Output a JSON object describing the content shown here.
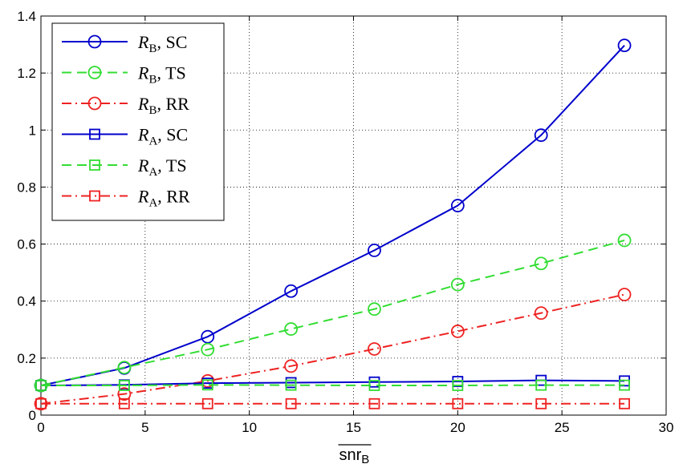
{
  "chart_data": {
    "type": "line",
    "title": "",
    "xlabel": {
      "main": "snr",
      "sub": "B",
      "overline": true
    },
    "ylabel": "",
    "xlim": [
      0,
      30
    ],
    "ylim": [
      0,
      1.4
    ],
    "x_ticks": [
      0,
      5,
      10,
      15,
      20,
      25,
      30
    ],
    "y_ticks": [
      0,
      0.2,
      0.4,
      0.6,
      0.8,
      1,
      1.2,
      1.4
    ],
    "x_tick_labels": [
      "0",
      "5",
      "10",
      "15",
      "20",
      "25",
      "30"
    ],
    "y_tick_labels": [
      "0",
      "0.2",
      "0.4",
      "0.6",
      "0.8",
      "1",
      "1.2",
      "1.4"
    ],
    "grid": true,
    "legend_position": "top-left",
    "x": [
      0,
      4,
      8,
      12,
      16,
      20,
      24,
      28
    ],
    "series": [
      {
        "name": "R_B, SC",
        "legend": {
          "var": "R",
          "sub": "B",
          "suffix": ", SC"
        },
        "color": "#0000cc",
        "dash": "solid",
        "marker": "circle",
        "values": [
          0.104,
          0.165,
          0.275,
          0.435,
          0.578,
          0.735,
          0.982,
          1.297
        ]
      },
      {
        "name": "R_B, TS",
        "legend": {
          "var": "R",
          "sub": "B",
          "suffix": ", TS"
        },
        "color": "#33dd33",
        "dash": "dashed",
        "marker": "circle",
        "values": [
          0.104,
          0.167,
          0.23,
          0.302,
          0.372,
          0.458,
          0.532,
          0.613
        ]
      },
      {
        "name": "R_B, RR",
        "legend": {
          "var": "R",
          "sub": "B",
          "suffix": ", RR"
        },
        "color": "#ee2222",
        "dash": "dashdot",
        "marker": "circle",
        "values": [
          0.04,
          0.074,
          0.12,
          0.172,
          0.232,
          0.294,
          0.358,
          0.423
        ]
      },
      {
        "name": "R_A, SC",
        "legend": {
          "var": "R",
          "sub": "A",
          "suffix": ", SC"
        },
        "color": "#0000cc",
        "dash": "solid",
        "marker": "square",
        "values": [
          0.104,
          0.106,
          0.112,
          0.114,
          0.116,
          0.118,
          0.122,
          0.12
        ]
      },
      {
        "name": "R_A, TS",
        "legend": {
          "var": "R",
          "sub": "A",
          "suffix": ", TS"
        },
        "color": "#33dd33",
        "dash": "dashed",
        "marker": "square",
        "values": [
          0.104,
          0.104,
          0.106,
          0.105,
          0.104,
          0.104,
          0.105,
          0.105
        ]
      },
      {
        "name": "R_A, RR",
        "legend": {
          "var": "R",
          "sub": "A",
          "suffix": ", RR"
        },
        "color": "#ee2222",
        "dash": "dashdot",
        "marker": "square",
        "values": [
          0.04,
          0.04,
          0.04,
          0.04,
          0.04,
          0.04,
          0.04,
          0.04
        ]
      }
    ]
  }
}
